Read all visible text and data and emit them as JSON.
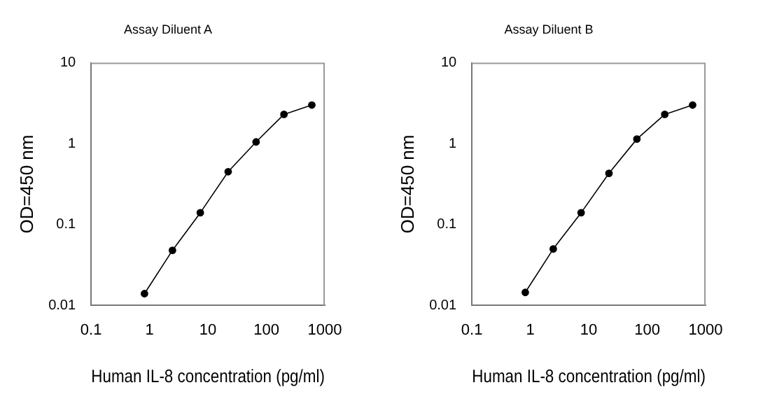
{
  "chart_data": [
    {
      "type": "line",
      "title": "Assay Diluent A",
      "xlabel": "Human IL-8 concentration (pg/ml)",
      "ylabel": "OD=450 nm",
      "log": "xy",
      "grid": false,
      "legend": false,
      "marker": "circle",
      "line_style": "solid",
      "xlim": [
        0.1,
        1000
      ],
      "xticks": [
        0.1,
        1,
        10,
        100,
        1000
      ],
      "ylim": [
        0.01,
        10
      ],
      "yticks": [
        0.01,
        0.1,
        1,
        10
      ],
      "x": [
        0.82,
        2.47,
        7.4,
        22.2,
        66.7,
        200,
        600
      ],
      "series": [
        {
          "color": "#000000",
          "values": [
            0.014,
            0.048,
            0.14,
            0.45,
            1.05,
            2.3,
            3.0
          ]
        }
      ]
    },
    {
      "type": "line",
      "title": "Assay Diluent B",
      "xlabel": "Human IL-8 concentration (pg/ml)",
      "ylabel": "OD=450 nm",
      "log": "xy",
      "grid": false,
      "legend": false,
      "marker": "circle",
      "line_style": "solid",
      "xlim": [
        0.1,
        1000
      ],
      "xticks": [
        0.1,
        1,
        10,
        100,
        1000
      ],
      "ylim": [
        0.01,
        10
      ],
      "yticks": [
        0.01,
        0.1,
        1,
        10
      ],
      "x": [
        0.82,
        2.47,
        7.4,
        22.2,
        66.7,
        200,
        600
      ],
      "series": [
        {
          "color": "#000000",
          "values": [
            0.0145,
            0.05,
            0.14,
            0.43,
            1.14,
            2.3,
            3.0
          ]
        }
      ]
    }
  ]
}
